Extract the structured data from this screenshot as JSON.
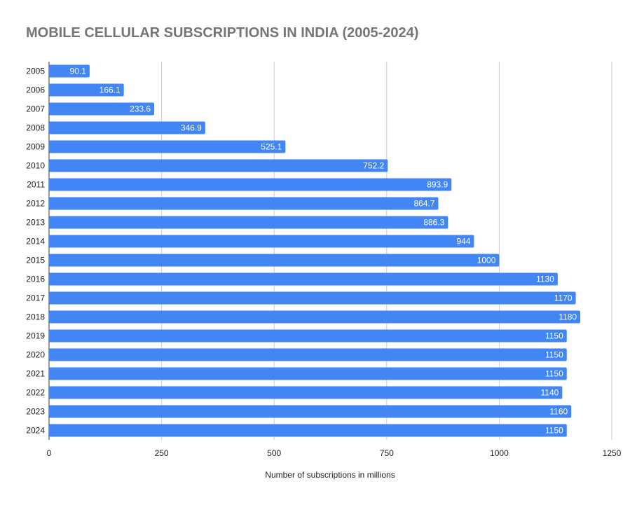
{
  "chart_data": {
    "type": "bar",
    "orientation": "horizontal",
    "title": "MOBILE CELLULAR SUBSCRIPTIONS IN INDIA (2005-2024)",
    "xlabel": "Number of subscriptions in millions",
    "ylabel": "",
    "xlim": [
      0,
      1250
    ],
    "x_ticks": [
      "0",
      "250",
      "500",
      "750",
      "1000",
      "1250"
    ],
    "grid": true,
    "legend": "none",
    "bar_color": "#4285f4",
    "categories": [
      "2005",
      "2006",
      "2007",
      "2008",
      "2009",
      "2010",
      "2011",
      "2012",
      "2013",
      "2014",
      "2015",
      "2016",
      "2017",
      "2018",
      "2019",
      "2020",
      "2021",
      "2022",
      "2023",
      "2024"
    ],
    "values": [
      90.1,
      166.1,
      233.6,
      346.9,
      525.1,
      752.2,
      893.9,
      864.7,
      886.3,
      944,
      1000,
      1130,
      1170,
      1180,
      1150,
      1150,
      1150,
      1140,
      1160,
      1150
    ],
    "value_labels": [
      "90.1",
      "166.1",
      "233.6",
      "346.9",
      "525.1",
      "752.2",
      "893.9",
      "864.7",
      "886.3",
      "944",
      "1000",
      "1130",
      "1170",
      "1180",
      "1150",
      "1150",
      "1150",
      "1140",
      "1160",
      "1150"
    ]
  }
}
